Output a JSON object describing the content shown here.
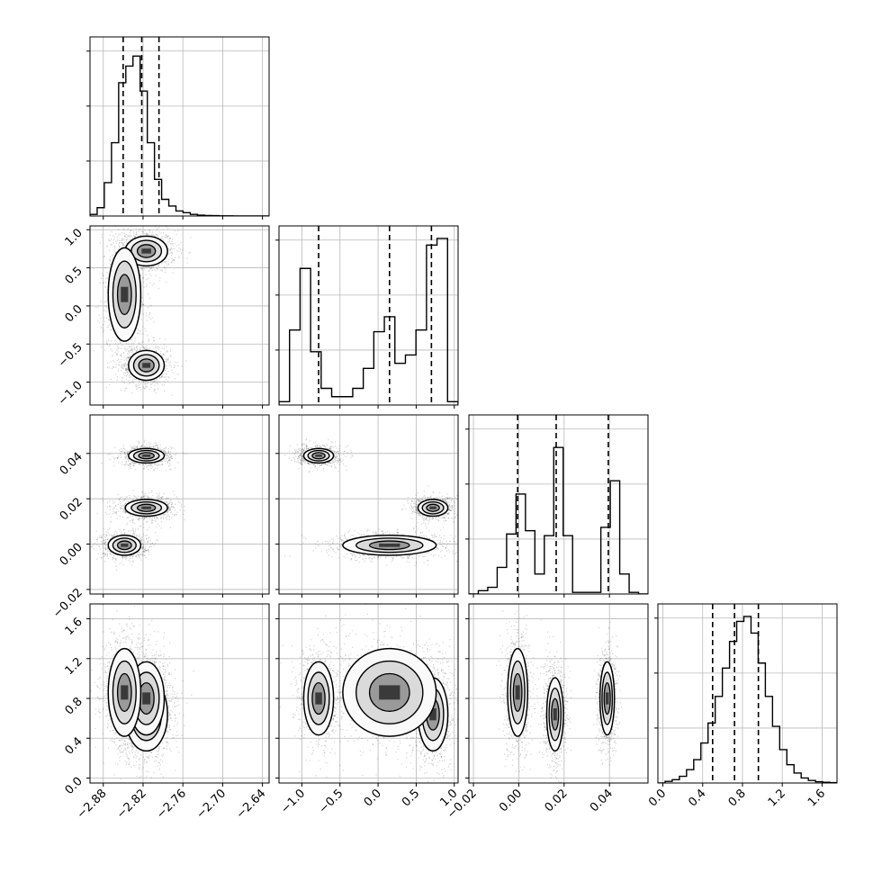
{
  "chart_data": {
    "type": "corner",
    "dimensions": 4,
    "grid": true,
    "quantile_lines": "dashed",
    "parameters": [
      {
        "range": [
          -2.9,
          -2.63
        ],
        "ticks": [
          "−2.88",
          "−2.82",
          "−2.76",
          "−2.70",
          "−2.64"
        ],
        "tick_values": [
          -2.88,
          -2.82,
          -2.76,
          -2.7,
          -2.64
        ],
        "quantiles": [
          -2.85,
          -2.822,
          -2.796
        ],
        "histogram": [
          0.01,
          0.05,
          0.2,
          0.44,
          0.8,
          0.9,
          0.96,
          0.75,
          0.44,
          0.22,
          0.1,
          0.06,
          0.03,
          0.02,
          0.01,
          0.005,
          0.003,
          0.002,
          0.001,
          0.001,
          0.0,
          0.0,
          0.0,
          0.0,
          0.0
        ]
      },
      {
        "range": [
          -1.3,
          1.05
        ],
        "ticks": [
          "−1.0",
          "−0.5",
          "0.0",
          "0.5",
          "1.0"
        ],
        "tick_values": [
          -1.0,
          -0.5,
          0.0,
          0.5,
          1.0
        ],
        "quantiles": [
          -0.78,
          0.15,
          0.7
        ],
        "histogram": [
          0.02,
          0.45,
          0.82,
          0.32,
          0.1,
          0.05,
          0.05,
          0.1,
          0.22,
          0.44,
          0.53,
          0.25,
          0.3,
          0.45,
          0.96,
          1.0,
          0.02
        ]
      },
      {
        "range": [
          -0.022,
          0.057
        ],
        "ticks": [
          "−0.02",
          "0.00",
          "0.02",
          "0.04"
        ],
        "tick_values": [
          -0.02,
          0.0,
          0.02,
          0.04
        ],
        "quantiles": [
          -0.0005,
          0.0165,
          0.0395
        ],
        "histogram": [
          0.0,
          0.02,
          0.04,
          0.16,
          0.36,
          0.6,
          0.38,
          0.12,
          0.35,
          0.88,
          0.35,
          0.01,
          0.01,
          0.01,
          0.4,
          0.68,
          0.12,
          0.01,
          0.0
        ]
      },
      {
        "range": [
          -0.05,
          1.75
        ],
        "ticks": [
          "0.0",
          "0.4",
          "0.8",
          "1.2",
          "1.6"
        ],
        "tick_values": [
          0.0,
          0.4,
          0.8,
          1.2,
          1.6
        ],
        "quantiles": [
          0.5,
          0.72,
          0.96
        ],
        "histogram": [
          0.0,
          0.01,
          0.02,
          0.04,
          0.08,
          0.14,
          0.24,
          0.36,
          0.52,
          0.69,
          0.85,
          0.97,
          1.0,
          0.9,
          0.72,
          0.52,
          0.34,
          0.2,
          0.11,
          0.06,
          0.03,
          0.015,
          0.008,
          0.004,
          0.002
        ]
      }
    ],
    "clusters": [
      {
        "m": [
          -2.815,
          0.72,
          0.016,
          0.64
        ],
        "s": [
          0.013,
          0.08,
          0.0015,
          0.15
        ]
      },
      {
        "m": [
          -2.815,
          -0.78,
          0.039,
          0.8
        ],
        "s": [
          0.011,
          0.08,
          0.0013,
          0.15
        ]
      },
      {
        "m": [
          -2.848,
          0.15,
          -0.0005,
          0.86
        ],
        "s": [
          0.01,
          0.25,
          0.0018,
          0.18
        ]
      }
    ]
  }
}
